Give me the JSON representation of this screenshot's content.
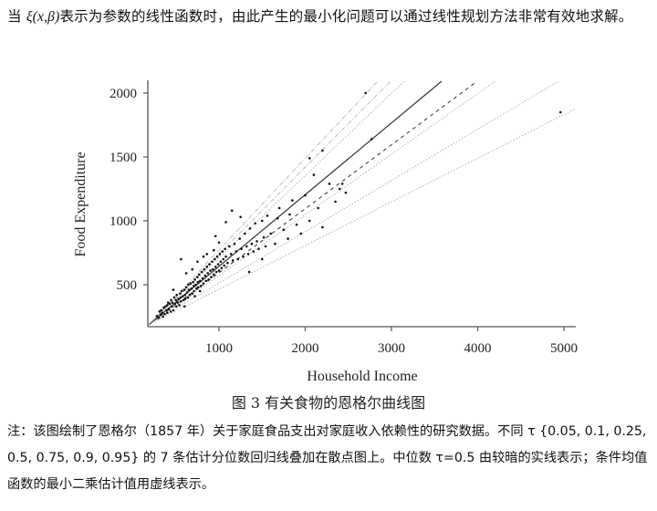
{
  "intro": {
    "before_math": "当 ",
    "math": "ξ(x,β)",
    "after_math": "表示为参数的线性函数时，由此产生的最小化问题可以通过线性规划方法非常有效地求解。"
  },
  "figure": {
    "caption": "图 3  有关食物的恩格尔曲线图",
    "note": "注：该图绘制了恩格尔（1857 年）关于家庭食品支出对家庭收入依赖性的研究数据。不同 τ {0.05,  0.1,  0.25,  0.5,  0.75,  0.9,  0.95} 的 7 条估计分位数回归线叠加在散点图上。中位数 τ=0.5 由较暗的实线表示；条件均值函数的最小二乘估计值用虚线表示。"
  },
  "chart_data": {
    "type": "scatter",
    "title": "",
    "xlabel": "Household Income",
    "ylabel": "Food Expenditure",
    "xlim": [
      185,
      5150
    ],
    "ylim": [
      186,
      2110
    ],
    "xticks": [
      1000,
      2000,
      3000,
      4000,
      5000
    ],
    "yticks": [
      500,
      1000,
      1500,
      2000
    ],
    "grid": false,
    "legend": null,
    "points": [
      [
        280,
        255
      ],
      [
        300,
        240
      ],
      [
        310,
        290
      ],
      [
        320,
        265
      ],
      [
        330,
        300
      ],
      [
        340,
        280
      ],
      [
        350,
        250
      ],
      [
        360,
        320
      ],
      [
        370,
        270
      ],
      [
        380,
        330
      ],
      [
        390,
        300
      ],
      [
        400,
        340
      ],
      [
        400,
        280
      ],
      [
        410,
        360
      ],
      [
        420,
        310
      ],
      [
        430,
        350
      ],
      [
        440,
        290
      ],
      [
        445,
        380
      ],
      [
        450,
        330
      ],
      [
        460,
        360
      ],
      [
        470,
        300
      ],
      [
        480,
        400
      ],
      [
        490,
        350
      ],
      [
        500,
        380
      ],
      [
        505,
        330
      ],
      [
        510,
        420
      ],
      [
        520,
        360
      ],
      [
        530,
        390
      ],
      [
        540,
        340
      ],
      [
        550,
        430
      ],
      [
        555,
        400
      ],
      [
        560,
        370
      ],
      [
        570,
        450
      ],
      [
        580,
        410
      ],
      [
        590,
        380
      ],
      [
        600,
        460
      ],
      [
        605,
        420
      ],
      [
        610,
        390
      ],
      [
        620,
        480
      ],
      [
        630,
        440
      ],
      [
        640,
        400
      ],
      [
        645,
        500
      ],
      [
        650,
        460
      ],
      [
        660,
        420
      ],
      [
        670,
        510
      ],
      [
        680,
        470
      ],
      [
        690,
        430
      ],
      [
        700,
        520
      ],
      [
        705,
        490
      ],
      [
        710,
        450
      ],
      [
        720,
        540
      ],
      [
        730,
        500
      ],
      [
        740,
        470
      ],
      [
        750,
        560
      ],
      [
        755,
        520
      ],
      [
        760,
        480
      ],
      [
        770,
        580
      ],
      [
        780,
        530
      ],
      [
        790,
        490
      ],
      [
        800,
        600
      ],
      [
        810,
        550
      ],
      [
        820,
        510
      ],
      [
        830,
        620
      ],
      [
        840,
        570
      ],
      [
        850,
        530
      ],
      [
        860,
        640
      ],
      [
        870,
        590
      ],
      [
        880,
        540
      ],
      [
        890,
        660
      ],
      [
        900,
        610
      ],
      [
        910,
        560
      ],
      [
        920,
        680
      ],
      [
        930,
        620
      ],
      [
        940,
        580
      ],
      [
        950,
        700
      ],
      [
        960,
        640
      ],
      [
        970,
        600
      ],
      [
        980,
        720
      ],
      [
        990,
        660
      ],
      [
        1000,
        610
      ],
      [
        1010,
        740
      ],
      [
        1020,
        680
      ],
      [
        1030,
        630
      ],
      [
        1040,
        760
      ],
      [
        1050,
        700
      ],
      [
        1060,
        650
      ],
      [
        1070,
        780
      ],
      [
        1080,
        720
      ],
      [
        1100,
        670
      ],
      [
        1120,
        800
      ],
      [
        1140,
        740
      ],
      [
        1160,
        690
      ],
      [
        1180,
        820
      ],
      [
        1200,
        760
      ],
      [
        1220,
        700
      ],
      [
        1240,
        860
      ],
      [
        1260,
        780
      ],
      [
        1280,
        720
      ],
      [
        1300,
        900
      ],
      [
        1320,
        800
      ],
      [
        1340,
        740
      ],
      [
        1360,
        940
      ],
      [
        1380,
        820
      ],
      [
        1400,
        760
      ],
      [
        1420,
        980
      ],
      [
        1440,
        840
      ],
      [
        1460,
        780
      ],
      [
        1500,
        1000
      ],
      [
        1520,
        870
      ],
      [
        1540,
        800
      ],
      [
        1560,
        1040
      ],
      [
        1600,
        900
      ],
      [
        1650,
        820
      ],
      [
        1700,
        1100
      ],
      [
        1750,
        930
      ],
      [
        1800,
        860
      ],
      [
        1850,
        1160
      ],
      [
        1900,
        970
      ],
      [
        1950,
        900
      ],
      [
        2000,
        1200
      ],
      [
        2050,
        1000
      ],
      [
        2100,
        1360
      ],
      [
        2150,
        1100
      ],
      [
        2200,
        950
      ],
      [
        2280,
        1290
      ],
      [
        2350,
        1150
      ],
      [
        2400,
        1250
      ],
      [
        2430,
        1290
      ],
      [
        2470,
        1220
      ],
      [
        2200,
        1550
      ],
      [
        2050,
        1490
      ],
      [
        2700,
        2000
      ],
      [
        2770,
        1640
      ],
      [
        1150,
        1080
      ],
      [
        620,
        590
      ],
      [
        690,
        620
      ],
      [
        750,
        680
      ],
      [
        820,
        720
      ],
      [
        960,
        880
      ],
      [
        560,
        700
      ],
      [
        470,
        460
      ],
      [
        1080,
        990
      ],
      [
        1250,
        1030
      ],
      [
        4960,
        1850
      ],
      [
        1350,
        600
      ],
      [
        1500,
        700
      ],
      [
        1680,
        1020
      ],
      [
        1820,
        1050
      ],
      [
        1000,
        830
      ],
      [
        860,
        740
      ],
      [
        940,
        770
      ],
      [
        600,
        330
      ],
      [
        720,
        410
      ],
      [
        780,
        450
      ]
    ],
    "lines": [
      {
        "name": "tau=0.95",
        "style": "dashdot",
        "x": [
          185,
          2841
        ],
        "y": [
          186,
          2093
        ]
      },
      {
        "name": "tau=0.9",
        "style": "dashdot",
        "x": [
          185,
          2989
        ],
        "y": [
          186,
          2093
        ]
      },
      {
        "name": "tau=0.75",
        "style": "dotted",
        "x": [
          185,
          3148
        ],
        "y": [
          186,
          2093
        ]
      },
      {
        "name": "tau=0.5 (median)",
        "style": "solid",
        "x": [
          185,
          3582
        ],
        "y": [
          186,
          2093
        ]
      },
      {
        "name": "OLS mean",
        "style": "dashed",
        "x": [
          185,
          3995
        ],
        "y": [
          186,
          2093
        ]
      },
      {
        "name": "tau=0.25",
        "style": "dotted",
        "x": [
          185,
          4206
        ],
        "y": [
          186,
          2093
        ]
      },
      {
        "name": "tau=0.1",
        "style": "dotted",
        "x": [
          185,
          4937
        ],
        "y": [
          186,
          2093
        ]
      },
      {
        "name": "tau=0.05",
        "style": "dotted",
        "x": [
          185,
          5138
        ],
        "y": [
          186,
          1879
        ]
      }
    ]
  }
}
